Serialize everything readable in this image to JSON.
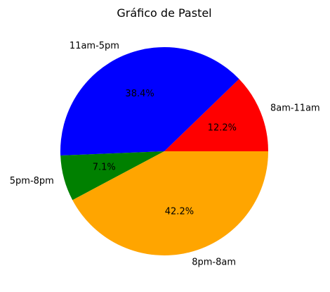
{
  "chart_data": {
    "type": "pie",
    "title": "Gráfico de Pastel",
    "categories": [
      "8am-11am",
      "11am-5pm",
      "5pm-8pm",
      "8pm-8am"
    ],
    "values": [
      12.2,
      38.4,
      7.1,
      42.2
    ],
    "value_labels": [
      "12.2%",
      "38.4%",
      "7.1%",
      "42.2%"
    ],
    "colors": [
      "#ff0000",
      "#0000ff",
      "#008000",
      "#ffa500"
    ],
    "start_angle_deg": 0,
    "direction": "counterclockwise",
    "legend": "none"
  }
}
